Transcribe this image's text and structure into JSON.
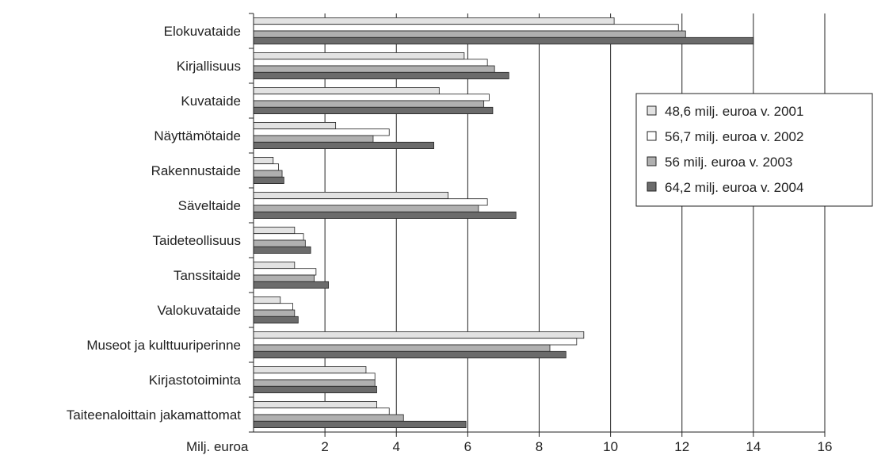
{
  "chart_data": {
    "type": "bar",
    "orientation": "horizontal",
    "title": "",
    "xlabel": "Milj. euroa",
    "ylabel": "",
    "xlim": [
      0,
      16
    ],
    "xticks": [
      2,
      4,
      6,
      8,
      10,
      12,
      14,
      16
    ],
    "grid": true,
    "legend_position": "right",
    "categories": [
      "Elokuvataide",
      "Kirjallisuus",
      "Kuvataide",
      "Näyttämötaide",
      "Rakennustaide",
      "Säveltaide",
      "Taideteollisuus",
      "Tanssitaide",
      "Valokuvataide",
      "Museot ja kulttuuriperinne",
      "Kirjastotoiminta",
      "Taiteenaloittain jakamattomat"
    ],
    "series": [
      {
        "name": "48,6 milj. euroa v. 2001",
        "color": "#e2e2e2",
        "values": [
          10.1,
          5.9,
          5.2,
          2.3,
          0.55,
          5.45,
          1.15,
          1.15,
          0.75,
          9.25,
          3.15,
          3.45
        ]
      },
      {
        "name": "56,7 milj. euroa  v. 2002",
        "color": "#ffffff",
        "values": [
          11.9,
          6.55,
          6.6,
          3.8,
          0.7,
          6.55,
          1.4,
          1.75,
          1.1,
          9.05,
          3.4,
          3.8
        ]
      },
      {
        "name": "56 milj. euroa v. 2003",
        "color": "#b0b0b0",
        "values": [
          12.1,
          6.75,
          6.45,
          3.35,
          0.8,
          6.3,
          1.45,
          1.7,
          1.15,
          8.3,
          3.4,
          4.2
        ]
      },
      {
        "name": "64,2 milj. euroa v. 2004",
        "color": "#6b6b6b",
        "values": [
          14.0,
          7.15,
          6.7,
          5.05,
          0.85,
          7.35,
          1.6,
          2.1,
          1.25,
          8.75,
          3.45,
          5.95
        ]
      }
    ]
  }
}
